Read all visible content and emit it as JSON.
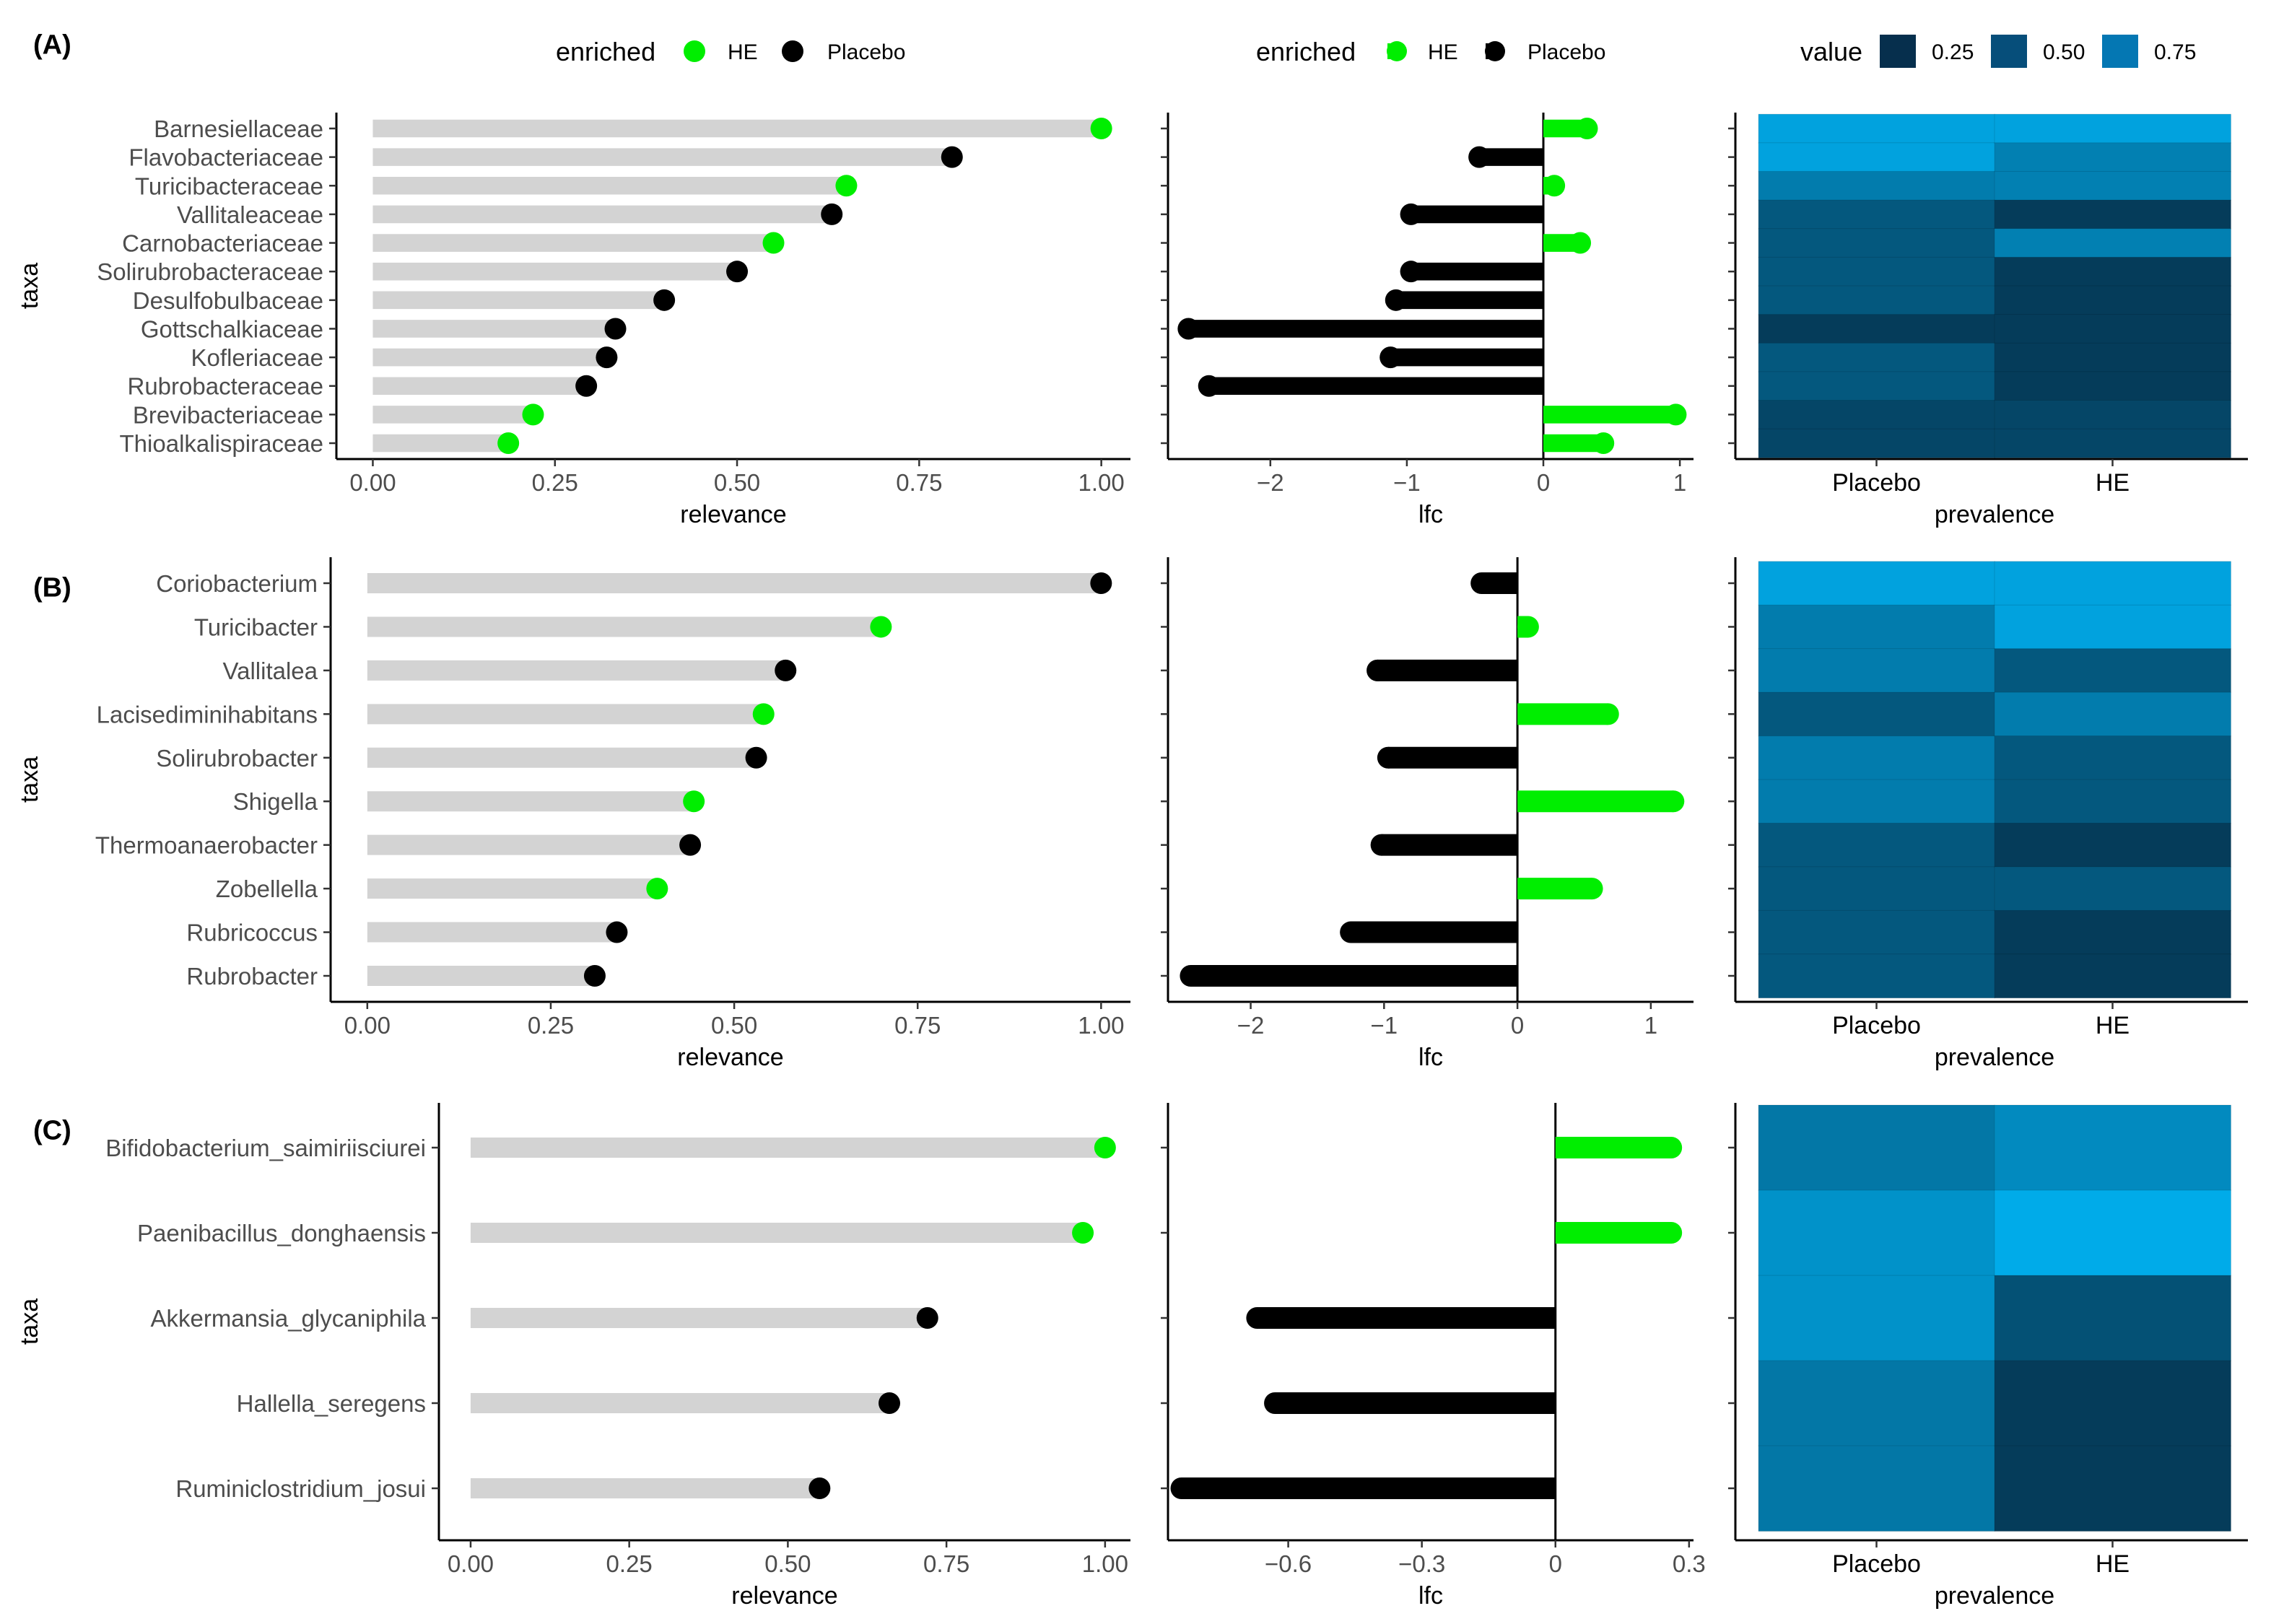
{
  "legends": {
    "enriched_title": "enriched",
    "he_label": "HE",
    "placebo_label": "Placebo",
    "value_title": "value",
    "value_ticks": [
      "0.25",
      "0.50",
      "0.75"
    ]
  },
  "colors": {
    "he": "#00ee00",
    "placebo": "#000000",
    "bar_bg": "#d3d3d3",
    "heat_low": "#062840",
    "heat_high": "#00b0f0"
  },
  "chart_data": [
    {
      "id": "A",
      "type": "lollipop+heatmap",
      "tag": "(A)",
      "ylabel": "taxa",
      "taxa": [
        "Barnesiellaceae",
        "Flavobacteriaceae",
        "Turicibacteraceae",
        "Vallitaleaceae",
        "Carnobacteriaceae",
        "Solirubrobacteraceae",
        "Desulfobulbaceae",
        "Gottschalkiaceae",
        "Kofleriaceae",
        "Rubrobacteraceae",
        "Brevibacteriaceae",
        "Thioalkalispiraceae"
      ],
      "enriched": [
        "HE",
        "Placebo",
        "HE",
        "Placebo",
        "HE",
        "Placebo",
        "Placebo",
        "Placebo",
        "Placebo",
        "Placebo",
        "HE",
        "HE"
      ],
      "relevance": [
        1.0,
        0.795,
        0.65,
        0.63,
        0.55,
        0.5,
        0.4,
        0.333,
        0.321,
        0.293,
        0.22,
        0.186
      ],
      "relevance_axis": {
        "label": "relevance",
        "ticks": [
          0,
          0.25,
          0.5,
          0.75,
          1.0
        ],
        "tick_labels": [
          "0.00",
          "0.25",
          "0.50",
          "0.75",
          "1.00"
        ],
        "lim": [
          -0.05,
          1.04
        ]
      },
      "lfc": [
        0.32,
        -0.47,
        0.08,
        -0.97,
        0.27,
        -0.97,
        -1.08,
        -2.6,
        -1.12,
        -2.45,
        0.97,
        0.44
      ],
      "lfc_axis": {
        "label": "lfc",
        "ticks": [
          -2,
          -1,
          0,
          1
        ],
        "tick_labels": [
          "−2",
          "−1",
          "0",
          "1"
        ],
        "lim": [
          -2.75,
          1.1
        ]
      },
      "prevalence_axis": {
        "label": "prevalence",
        "columns": [
          "Placebo",
          "HE"
        ]
      },
      "prevalence": {
        "Placebo": [
          0.9,
          0.9,
          0.62,
          0.35,
          0.35,
          0.35,
          0.35,
          0.15,
          0.35,
          0.35,
          0.22,
          0.22
        ],
        "HE": [
          0.9,
          0.65,
          0.65,
          0.15,
          0.65,
          0.15,
          0.15,
          0.15,
          0.15,
          0.15,
          0.22,
          0.22
        ]
      }
    },
    {
      "id": "B",
      "type": "lollipop+heatmap",
      "tag": "(B)",
      "ylabel": "taxa",
      "taxa": [
        "Coriobacterium",
        "Turicibacter",
        "Vallitalea",
        "Lacisediminihabitans",
        "Solirubrobacter",
        "Shigella",
        "Thermoanaerobacter",
        "Zobellella",
        "Rubricoccus",
        "Rubrobacter"
      ],
      "enriched": [
        "Placebo",
        "HE",
        "Placebo",
        "HE",
        "Placebo",
        "HE",
        "Placebo",
        "HE",
        "Placebo",
        "Placebo"
      ],
      "relevance": [
        1.0,
        0.7,
        0.57,
        0.54,
        0.53,
        0.445,
        0.44,
        0.395,
        0.34,
        0.31
      ],
      "relevance_axis": {
        "label": "relevance",
        "ticks": [
          0,
          0.25,
          0.5,
          0.75,
          1.0
        ],
        "tick_labels": [
          "0.00",
          "0.25",
          "0.50",
          "0.75",
          "1.00"
        ],
        "lim": [
          -0.05,
          1.04
        ]
      },
      "lfc": [
        -0.27,
        0.08,
        -1.05,
        0.68,
        -0.97,
        1.17,
        -1.02,
        0.56,
        -1.25,
        -2.45
      ],
      "lfc_axis": {
        "label": "lfc",
        "ticks": [
          -2,
          -1,
          0,
          1
        ],
        "tick_labels": [
          "−2",
          "−1",
          "0",
          "1"
        ],
        "lim": [
          -2.62,
          1.32
        ]
      },
      "prevalence_axis": {
        "label": "prevalence",
        "columns": [
          "Placebo",
          "HE"
        ]
      },
      "prevalence": {
        "Placebo": [
          0.9,
          0.62,
          0.62,
          0.35,
          0.62,
          0.62,
          0.35,
          0.35,
          0.35,
          0.35
        ],
        "HE": [
          0.9,
          0.9,
          0.35,
          0.62,
          0.35,
          0.35,
          0.15,
          0.35,
          0.15,
          0.15
        ]
      }
    },
    {
      "id": "C",
      "type": "lollipop+heatmap",
      "tag": "(C)",
      "ylabel": "taxa",
      "taxa": [
        "Bifidobacterium_saimiriisciurei",
        "Paenibacillus_donghaensis",
        "Akkermansia_glycaniphila",
        "Hallella_seregens",
        "Ruminiclostridium_josui"
      ],
      "enriched": [
        "HE",
        "HE",
        "Placebo",
        "Placebo",
        "Placebo"
      ],
      "relevance": [
        1.0,
        0.965,
        0.72,
        0.66,
        0.55
      ],
      "relevance_axis": {
        "label": "relevance",
        "ticks": [
          0,
          0.25,
          0.5,
          0.75,
          1.0
        ],
        "tick_labels": [
          "0.00",
          "0.25",
          "0.50",
          "0.75",
          "1.00"
        ],
        "lim": [
          -0.05,
          1.04
        ]
      },
      "lfc": [
        0.26,
        0.26,
        -0.67,
        -0.63,
        -0.84
      ],
      "lfc_axis": {
        "label": "lfc",
        "ticks": [
          -0.6,
          -0.3,
          0,
          0.3
        ],
        "tick_labels": [
          "−0.6",
          "−0.3",
          "0",
          "0.3"
        ],
        "lim": [
          -0.87,
          0.31
        ]
      },
      "prevalence_axis": {
        "label": "prevalence",
        "columns": [
          "Placebo",
          "HE"
        ]
      },
      "prevalence": {
        "Placebo": [
          0.58,
          0.78,
          0.78,
          0.58,
          0.58
        ],
        "HE": [
          0.72,
          0.96,
          0.3,
          0.15,
          0.15
        ]
      }
    }
  ]
}
